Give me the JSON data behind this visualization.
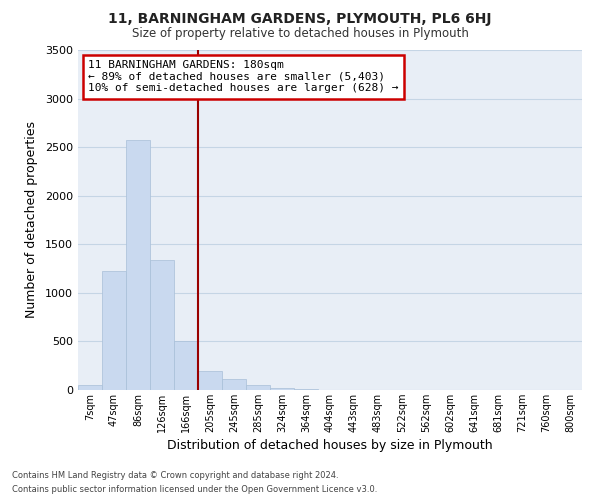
{
  "title1": "11, BARNINGHAM GARDENS, PLYMOUTH, PL6 6HJ",
  "title2": "Size of property relative to detached houses in Plymouth",
  "xlabel": "Distribution of detached houses by size in Plymouth",
  "ylabel": "Number of detached properties",
  "bar_labels": [
    "7sqm",
    "47sqm",
    "86sqm",
    "126sqm",
    "166sqm",
    "205sqm",
    "245sqm",
    "285sqm",
    "324sqm",
    "364sqm",
    "404sqm",
    "443sqm",
    "483sqm",
    "522sqm",
    "562sqm",
    "602sqm",
    "641sqm",
    "681sqm",
    "721sqm",
    "760sqm",
    "800sqm"
  ],
  "bar_values": [
    50,
    1230,
    2570,
    1340,
    500,
    200,
    110,
    50,
    25,
    15,
    5,
    3,
    2,
    1,
    0,
    0,
    0,
    0,
    0,
    0,
    0
  ],
  "bar_color": "#c9d9ef",
  "bar_edge_color": "#a8bfd8",
  "grid_color": "#c5d5e5",
  "background_color": "#e8eef6",
  "vline_color": "#990000",
  "annotation_title": "11 BARNINGHAM GARDENS: 180sqm",
  "annotation_line1": "← 89% of detached houses are smaller (5,403)",
  "annotation_line2": "10% of semi-detached houses are larger (628) →",
  "annotation_box_color": "#ffffff",
  "annotation_border_color": "#cc0000",
  "ylim": [
    0,
    3500
  ],
  "yticks": [
    0,
    500,
    1000,
    1500,
    2000,
    2500,
    3000,
    3500
  ],
  "footnote1": "Contains HM Land Registry data © Crown copyright and database right 2024.",
  "footnote2": "Contains public sector information licensed under the Open Government Licence v3.0."
}
